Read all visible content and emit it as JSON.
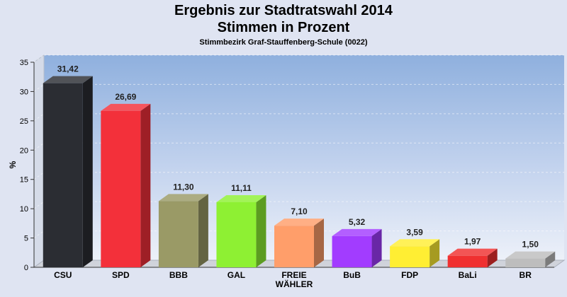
{
  "chart_data": {
    "type": "bar",
    "title": "Ergebnis zur Stadtratswahl 2014",
    "subtitle": "Stimmen in Prozent",
    "caption": "Stimmbezirk Graf-Stauffenberg-Schule (0022)",
    "ylabel": "%",
    "xlabel": "",
    "ylim": [
      0,
      35
    ],
    "yticks": [
      "0",
      "5",
      "10",
      "15",
      "20",
      "25",
      "30",
      "35"
    ],
    "grid": true,
    "legend": "none",
    "categories": [
      [
        "CSU"
      ],
      [
        "SPD"
      ],
      [
        "BBB"
      ],
      [
        "GAL"
      ],
      [
        "FREIE",
        "WÄHLER"
      ],
      [
        "BuB"
      ],
      [
        "FDP"
      ],
      [
        "BaLi"
      ],
      [
        "BR"
      ]
    ],
    "values": [
      31.42,
      26.69,
      11.3,
      11.11,
      7.1,
      5.32,
      3.59,
      1.97,
      1.5
    ],
    "value_labels": [
      "31,42",
      "26,69",
      "11,30",
      "11,11",
      "7,10",
      "5,32",
      "3,59",
      "1,97",
      "1,50"
    ],
    "colors": [
      "#2b2d33",
      "#f3303a",
      "#9a9a66",
      "#8ef033",
      "#ff9e6a",
      "#a23cff",
      "#ffee33",
      "#f03030",
      "#bdbdbd"
    ]
  }
}
